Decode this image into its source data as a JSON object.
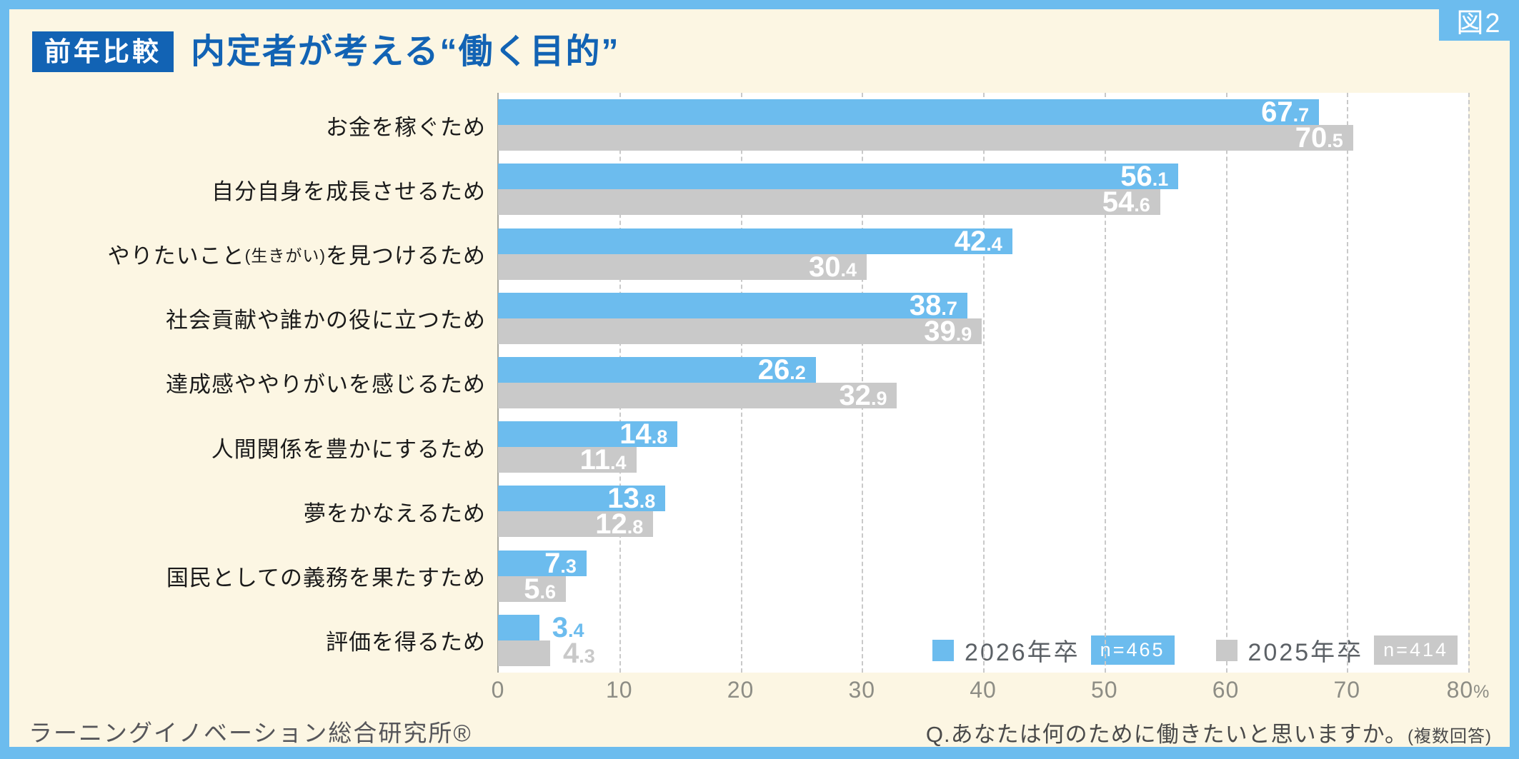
{
  "figure_label": "図2",
  "header": {
    "badge": "前年比較",
    "title": "内定者が考える“働く目的”"
  },
  "colors": {
    "frame_blue": "#6cbcee",
    "header_dark_blue": "#1263b4",
    "panel_cream": "#fcf6e3",
    "plot_white": "#ffffff",
    "series_2026_blue": "#6cbcee",
    "series_2025_gray": "#c9c9c9",
    "value_label_white": "#ffffff",
    "gridline_gray": "#c9c9c9"
  },
  "chart_data": {
    "type": "bar",
    "orientation": "horizontal",
    "title": "内定者が考える“働く目的”",
    "xlim": [
      0,
      80
    ],
    "x_unit": "%",
    "grid": "dashed-vertical",
    "legend_position": "bottom-right",
    "axis_ticks": [
      {
        "v": 0,
        "label": "0"
      },
      {
        "v": 10,
        "label": "10"
      },
      {
        "v": 20,
        "label": "20"
      },
      {
        "v": 30,
        "label": "30"
      },
      {
        "v": 40,
        "label": "40"
      },
      {
        "v": 50,
        "label": "50"
      },
      {
        "v": 60,
        "label": "60"
      },
      {
        "v": 70,
        "label": "70"
      },
      {
        "v": 80,
        "label": "80",
        "suffix": "%"
      }
    ],
    "categories": [
      {
        "label": "お金を稼ぐため",
        "segments": [
          {
            "text": "お金を稼ぐため"
          }
        ]
      },
      {
        "label": "自分自身を成長させるため",
        "segments": [
          {
            "text": "自分自身を成長させるため"
          }
        ]
      },
      {
        "label": "やりたいこと(生きがい)を見つけるため",
        "segments": [
          {
            "text": "やりたいこと"
          },
          {
            "text": "(生きがい)",
            "small": true
          },
          {
            "text": "を見つけるため"
          }
        ]
      },
      {
        "label": "社会貢献や誰かの役に立つため",
        "segments": [
          {
            "text": "社会貢献や誰かの役に立つため"
          }
        ]
      },
      {
        "label": "達成感ややりがいを感じるため",
        "segments": [
          {
            "text": "達成感ややりがいを感じるため"
          }
        ]
      },
      {
        "label": "人間関係を豊かにするため",
        "segments": [
          {
            "text": "人間関係を豊かにするため"
          }
        ]
      },
      {
        "label": "夢をかなえるため",
        "segments": [
          {
            "text": "夢をかなえるため"
          }
        ]
      },
      {
        "label": "国民としての義務を果たすため",
        "segments": [
          {
            "text": "国民としての義務を果たすため"
          }
        ]
      },
      {
        "label": "評価を得るため",
        "segments": [
          {
            "text": "評価を得るため"
          }
        ]
      }
    ],
    "series": [
      {
        "name": "2026年卒",
        "n_label": "n=465",
        "color": "#6cbcee",
        "values": [
          67.7,
          56.1,
          42.4,
          38.7,
          26.2,
          14.8,
          13.8,
          7.3,
          3.4
        ]
      },
      {
        "name": "2025年卒",
        "n_label": "n=414",
        "color": "#c9c9c9",
        "values": [
          70.5,
          54.6,
          30.4,
          39.9,
          32.9,
          11.4,
          12.8,
          5.6,
          4.3
        ]
      }
    ]
  },
  "footer": {
    "source": "ラーニングイノベーション総合研究所®",
    "question": "Q.あなたは何のために働きたいと思いますか。",
    "note": "(複数回答)"
  }
}
